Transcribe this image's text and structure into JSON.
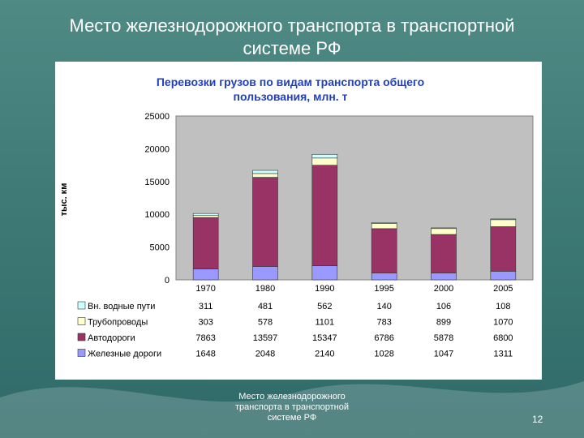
{
  "slide": {
    "title_line1": "Место железнодорожного транспорта в транспортной",
    "title_line2": "системе РФ",
    "footer_line1": "Место железнодорожного",
    "footer_line2": "транспорта в транспортной",
    "footer_line3": "системе РФ",
    "page_number": "12"
  },
  "chart_data": {
    "type": "bar",
    "stacked": true,
    "title_line1": "Перевозки грузов по видам транспорта общего",
    "title_line2": "пользования, млн. т",
    "ylabel": "тыс. км",
    "ylim": [
      0,
      25000
    ],
    "yticks": [
      "0",
      "5000",
      "10000",
      "15000",
      "20000",
      "25000"
    ],
    "categories": [
      "1970",
      "1980",
      "1990",
      "1995",
      "2000",
      "2005"
    ],
    "series": [
      {
        "name": "Железные дороги",
        "color": "#9999ff",
        "values": [
          1648,
          2048,
          2140,
          1028,
          1047,
          1311
        ]
      },
      {
        "name": "Автодороги",
        "color": "#993366",
        "values": [
          7863,
          13597,
          15347,
          6786,
          5878,
          6800
        ]
      },
      {
        "name": "Трубопроводы",
        "color": "#ffffcc",
        "values": [
          303,
          578,
          1101,
          783,
          899,
          1070
        ]
      },
      {
        "name": "Вн. водные пути",
        "color": "#ccffff",
        "values": [
          311,
          481,
          562,
          140,
          106,
          108
        ]
      }
    ],
    "table_rows": [
      {
        "name": "Вн. водные пути",
        "color": "#ccffff",
        "cells": [
          "311",
          "481",
          "562",
          "140",
          "106",
          "108"
        ]
      },
      {
        "name": "Трубопроводы",
        "color": "#ffffcc",
        "cells": [
          "303",
          "578",
          "1101",
          "783",
          "899",
          "1070"
        ]
      },
      {
        "name": "Автодороги",
        "color": "#993366",
        "cells": [
          "7863",
          "13597",
          "15347",
          "6786",
          "5878",
          "6800"
        ]
      },
      {
        "name": "Железные дороги",
        "color": "#9999ff",
        "cells": [
          "1648",
          "2048",
          "2140",
          "1028",
          "1047",
          "1311"
        ]
      }
    ],
    "grid": false,
    "plot_background": "#c0c0c0",
    "legend_placement": "bottom-left (data table)"
  }
}
